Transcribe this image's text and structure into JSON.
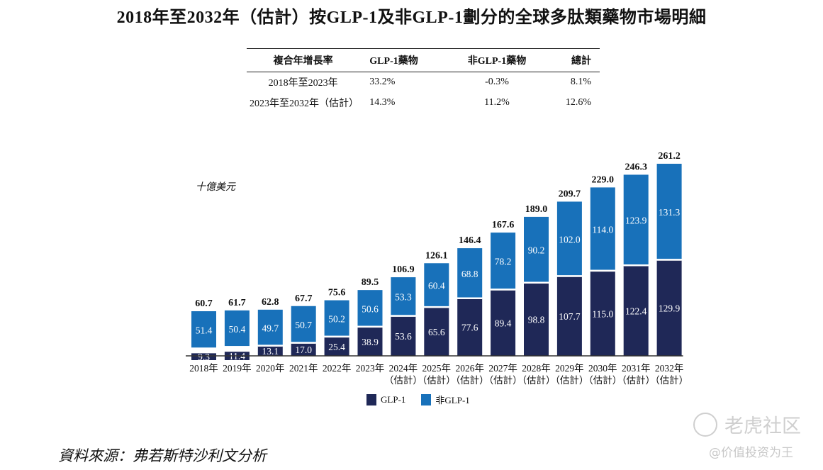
{
  "title": "2018年至2032年（估計）按GLP-1及非GLP-1劃分的全球多肽類藥物市場明細",
  "cagr_table": {
    "headers": [
      "複合年增長率",
      "GLP-1藥物",
      "非GLP-1藥物",
      "總計"
    ],
    "rows": [
      [
        "2018年至2023年",
        "33.2%",
        "-0.3%",
        "8.1%"
      ],
      [
        "2023年至2032年（估計）",
        "14.3%",
        "11.2%",
        "12.6%"
      ]
    ]
  },
  "unit_label": "十億美元",
  "colors": {
    "glp1": "#1f2857",
    "non_glp1": "#1871ba",
    "axis": "#333333"
  },
  "chart_data": {
    "type": "bar",
    "stacked": true,
    "title": "2018年至2032年（估計）按GLP-1及非GLP-1劃分的全球多肽類藥物市場明細",
    "ylabel": "十億美元",
    "xlabel": "",
    "categories": [
      "2018年",
      "2019年",
      "2020年",
      "2021年",
      "2022年",
      "2023年",
      "2024年",
      "2025年",
      "2026年",
      "2027年",
      "2028年",
      "2029年",
      "2030年",
      "2031年",
      "2032年"
    ],
    "category_sublabels": [
      "",
      "",
      "",
      "",
      "",
      "",
      "（估計）",
      "（估計）",
      "（估計）",
      "（估計）",
      "（估計）",
      "（估計）",
      "（估計）",
      "（估計）",
      "（估計）"
    ],
    "series": [
      {
        "name": "GLP-1",
        "values": [
          9.3,
          11.4,
          13.1,
          17.0,
          25.4,
          38.9,
          53.6,
          65.6,
          77.6,
          89.4,
          98.8,
          107.7,
          115.0,
          122.4,
          129.9
        ]
      },
      {
        "name": "非GLP-1",
        "values": [
          51.4,
          50.4,
          49.7,
          50.7,
          50.2,
          50.6,
          53.3,
          60.4,
          68.8,
          78.2,
          90.2,
          102.0,
          114.0,
          123.9,
          131.3
        ]
      }
    ],
    "totals": [
      60.7,
      61.7,
      62.8,
      67.7,
      75.6,
      89.5,
      106.9,
      126.1,
      146.4,
      167.6,
      189.0,
      209.7,
      229.0,
      246.3,
      261.2
    ],
    "legend": [
      "GLP-1",
      "非GLP-1"
    ],
    "legend_position": "bottom",
    "grid": false
  },
  "source": "資料來源：弗若斯特沙利文分析",
  "watermark": {
    "brand": "老虎社区",
    "handle": "@价值投资为王"
  }
}
